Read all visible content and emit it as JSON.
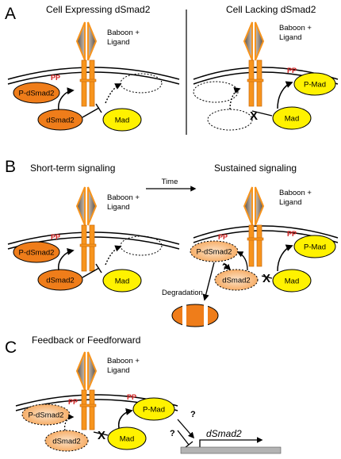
{
  "panels": {
    "a": {
      "letter": "A",
      "left_title": "Cell Expressing dSmad2",
      "right_title": "Cell Lacking dSmad2",
      "receptor_label_line1": "Baboon +",
      "receptor_label_line2": "Ligand"
    },
    "b": {
      "letter": "B",
      "left_title": "Short-term signaling",
      "right_title": "Sustained signaling",
      "arrow_label": "Time",
      "degradation_label": "Degradation"
    },
    "c": {
      "letter": "C",
      "title": "Feedback or Feedforward",
      "gene_label": "dSmad2"
    }
  },
  "labels": {
    "p_dsmad2": "P-dSmad2",
    "dsmad2": "dSmad2",
    "mad": "Mad",
    "p_mad": "P-Mad",
    "pp": "PP",
    "question": "?",
    "cross": "X"
  },
  "colors": {
    "dsmad2_fill": "#ef7d1a",
    "mad_fill": "#fff200",
    "receptor_orange": "#f7941d",
    "receptor_diamond": "#8a7c70",
    "pp_red": "#d11f1f",
    "gene_bar": "#b3b3b3"
  }
}
